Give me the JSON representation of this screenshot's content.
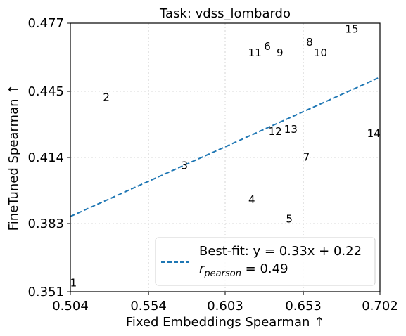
{
  "chart_data": {
    "type": "scatter",
    "title": "Task: vdss_lombardo",
    "xlabel": "Fixed Embeddings Spearman ↑",
    "ylabel": "FineTuned Spearman ↑",
    "xlim": [
      0.504,
      0.702
    ],
    "ylim": [
      0.351,
      0.477
    ],
    "xticks": [
      "0.504",
      "0.554",
      "0.603",
      "0.653",
      "0.702"
    ],
    "yticks": [
      "0.351",
      "0.383",
      "0.414",
      "0.445",
      "0.477"
    ],
    "grid": true,
    "points": [
      {
        "label": "1",
        "x": 0.506,
        "y": 0.355
      },
      {
        "label": "2",
        "x": 0.527,
        "y": 0.442
      },
      {
        "label": "3",
        "x": 0.577,
        "y": 0.41
      },
      {
        "label": "4",
        "x": 0.62,
        "y": 0.394
      },
      {
        "label": "5",
        "x": 0.644,
        "y": 0.385
      },
      {
        "label": "6",
        "x": 0.63,
        "y": 0.466
      },
      {
        "label": "7",
        "x": 0.655,
        "y": 0.414
      },
      {
        "label": "8",
        "x": 0.657,
        "y": 0.468
      },
      {
        "label": "9",
        "x": 0.638,
        "y": 0.463
      },
      {
        "label": "10",
        "x": 0.664,
        "y": 0.463
      },
      {
        "label": "11",
        "x": 0.622,
        "y": 0.463
      },
      {
        "label": "12",
        "x": 0.635,
        "y": 0.426
      },
      {
        "label": "13",
        "x": 0.645,
        "y": 0.427
      },
      {
        "label": "14",
        "x": 0.698,
        "y": 0.425
      },
      {
        "label": "15",
        "x": 0.684,
        "y": 0.474
      }
    ],
    "fit": {
      "slope": 0.33,
      "intercept": 0.22
    },
    "legend": {
      "position": "lower-right",
      "fit_label": "Best-fit: y = 0.33x + 0.22",
      "pearson_r": "r",
      "pearson_sub": "pearson",
      "pearson_value": " = 0.49"
    },
    "colors": {
      "fit_line": "#1f77b4",
      "axis": "#000000"
    }
  }
}
